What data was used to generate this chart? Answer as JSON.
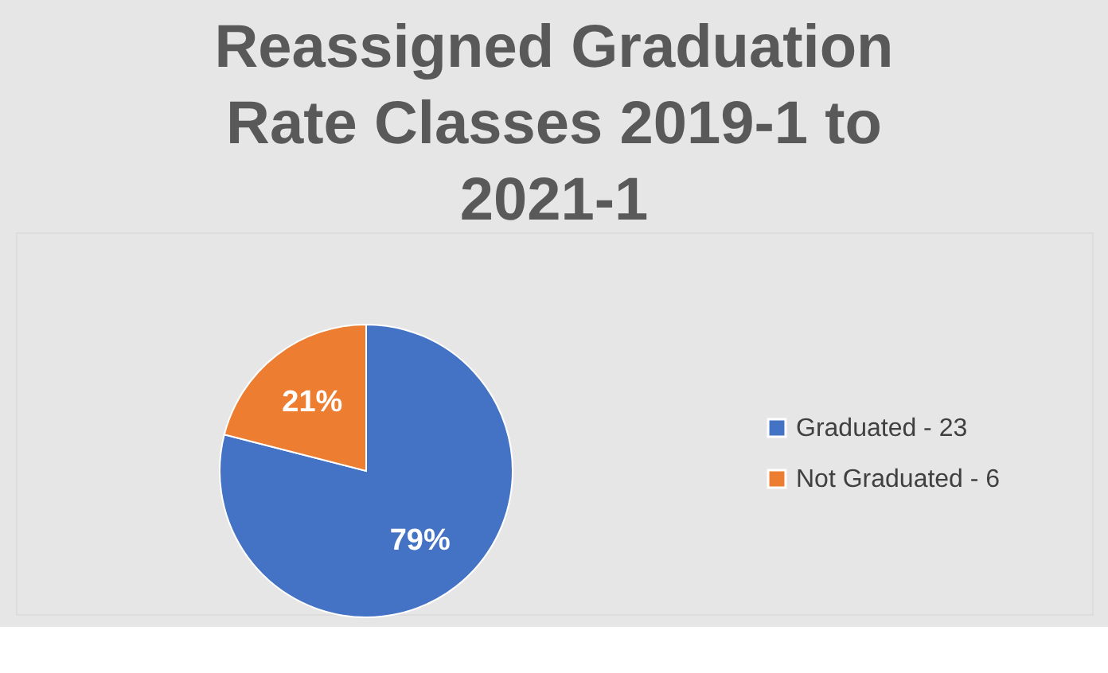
{
  "chart_data": {
    "type": "pie",
    "title": "Reassigned Graduation Rate Classes 2019-1 to 2021-1",
    "categories": [
      "Graduated - 23",
      "Not Graduated - 6"
    ],
    "values": [
      79,
      21
    ],
    "colors": [
      "#4472c4",
      "#ed7d31"
    ],
    "value_labels": [
      "79%",
      "21%"
    ],
    "legend": "right"
  }
}
